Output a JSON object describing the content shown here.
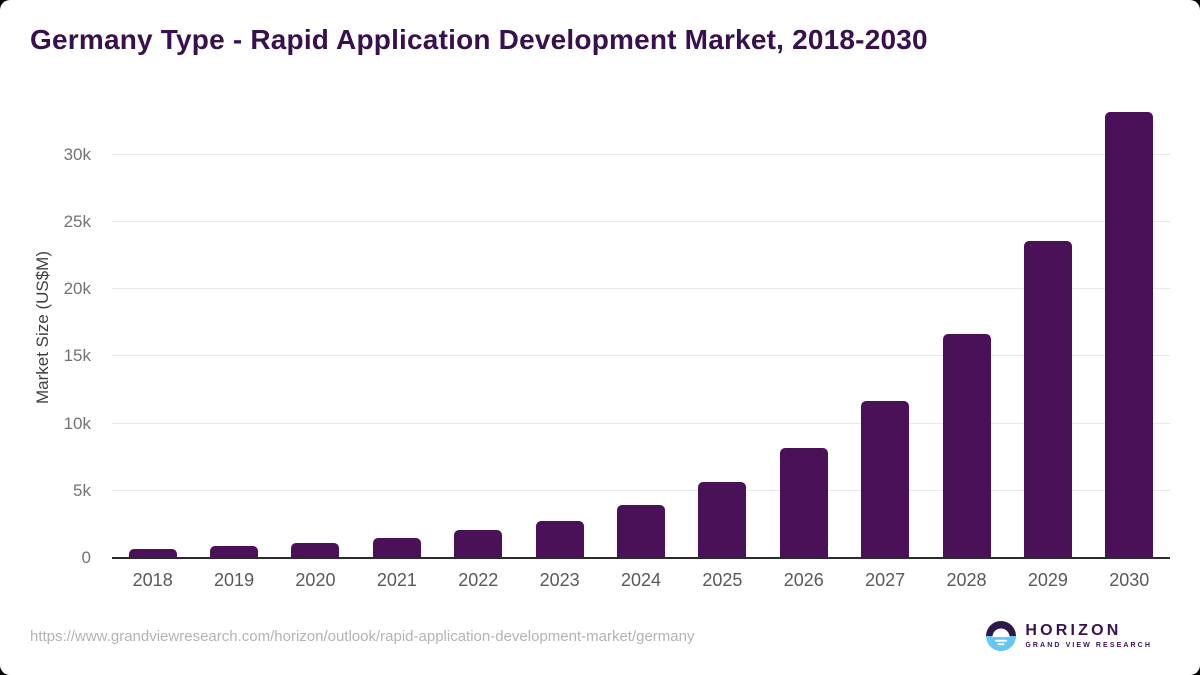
{
  "page": {
    "title": "Germany Type - Rapid Application Development Market, 2018-2030"
  },
  "chart_data": {
    "type": "bar",
    "title": "Germany Type - Rapid Application Development Market, 2018-2030",
    "xlabel": "",
    "ylabel": "Market Size (US$M)",
    "categories": [
      "2018",
      "2019",
      "2020",
      "2021",
      "2022",
      "2023",
      "2024",
      "2025",
      "2026",
      "2027",
      "2028",
      "2029",
      "2030"
    ],
    "values": [
      700,
      870,
      1120,
      1490,
      2060,
      2780,
      3950,
      5650,
      8200,
      11700,
      16650,
      23550,
      33150
    ],
    "unit": "US$M",
    "ylim": [
      0,
      34200
    ],
    "yticks": [
      {
        "value": 0,
        "label": "0"
      },
      {
        "value": 5000,
        "label": "5k"
      },
      {
        "value": 10000,
        "label": "10k"
      },
      {
        "value": 15000,
        "label": "15k"
      },
      {
        "value": 20000,
        "label": "20k"
      },
      {
        "value": 25000,
        "label": "25k"
      },
      {
        "value": 30000,
        "label": "30k"
      }
    ],
    "grid": "horizontal",
    "legend_position": "none",
    "bar_color": "#4a1158"
  },
  "colors": {
    "title": "#38104e",
    "bar": "#4a1158",
    "gridline": "#e8e8e8",
    "axis_line": "#2b2b2b",
    "logo_dark": "#2e1a47",
    "logo_blue": "#66c5f1"
  },
  "footer": {
    "source_url": "https://www.grandviewresearch.com/horizon/outlook/rapid-application-development-market/germany",
    "logo": {
      "brand": "HORIZON",
      "subtitle": "GRAND VIEW RESEARCH"
    }
  }
}
